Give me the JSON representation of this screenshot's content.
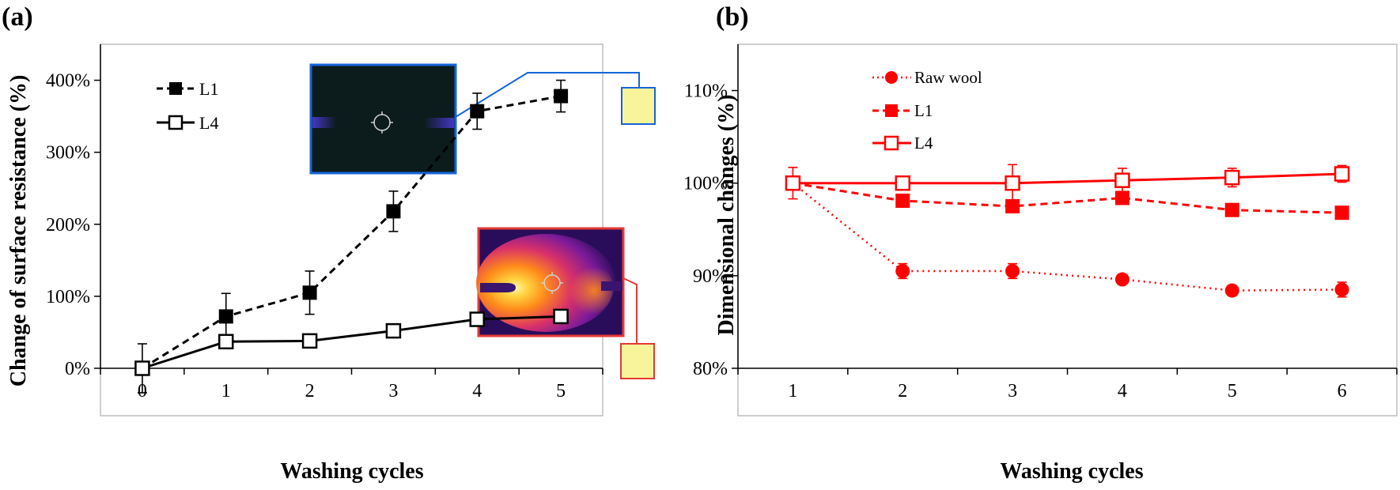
{
  "chart_data": [
    {
      "panel": "(a)",
      "type": "line",
      "title": "",
      "xlabel": "Washing cycles",
      "ylabel": "Change of surface resistance (%)",
      "x": [
        0,
        1,
        2,
        3,
        4,
        5
      ],
      "xticks": [
        "0",
        "1",
        "2",
        "3",
        "4",
        "5"
      ],
      "xlim": [
        -0.5,
        5.5
      ],
      "ylim": [
        0,
        450
      ],
      "yticks": [
        0,
        100,
        200,
        300,
        400
      ],
      "ytick_labels": [
        "0%",
        "100%",
        "200%",
        "300%",
        "400%"
      ],
      "grid": false,
      "legend_position": "top-left",
      "series": [
        {
          "name": "L1",
          "style": "dashed",
          "marker": "filled-square",
          "color": "#000000",
          "values": [
            0,
            72,
            105,
            218,
            357,
            378
          ],
          "errors": [
            0,
            32,
            30,
            28,
            25,
            22
          ]
        },
        {
          "name": "L4",
          "style": "solid",
          "marker": "open-square",
          "color": "#000000",
          "values": [
            0,
            37,
            38,
            52,
            68,
            72
          ],
          "errors": [
            34,
            0,
            0,
            0,
            0,
            0
          ]
        }
      ],
      "annotations": [
        {
          "type": "thermal-image-inset",
          "refers_to": "L1",
          "x": 5,
          "highlight": "#fafaa0",
          "connector_color": "#1565d8",
          "style": "cold"
        },
        {
          "type": "thermal-image-inset",
          "refers_to": "L4",
          "x": 5,
          "highlight": "#fafaa0",
          "connector_color": "#e53935",
          "style": "hot"
        }
      ]
    },
    {
      "panel": "(b)",
      "type": "line",
      "title": "",
      "xlabel": "Washing cycles",
      "ylabel": "Dimensional changes (%)",
      "x": [
        1,
        2,
        3,
        4,
        5,
        6
      ],
      "xticks": [
        "1",
        "2",
        "3",
        "4",
        "5",
        "6"
      ],
      "xlim": [
        0.5,
        6.5
      ],
      "ylim": [
        80,
        115
      ],
      "yticks": [
        80,
        90,
        100,
        110
      ],
      "ytick_labels": [
        "80%",
        "90%",
        "100%",
        "110%"
      ],
      "grid": false,
      "legend_position": "top-left",
      "series": [
        {
          "name": "Raw wool",
          "style": "dotted",
          "marker": "filled-circle",
          "color": "#ff0000",
          "values": [
            100,
            90.5,
            90.5,
            89.6,
            88.4,
            88.5
          ],
          "errors": [
            0,
            0.8,
            0.8,
            0,
            0,
            0.8
          ]
        },
        {
          "name": "L1",
          "style": "dashed",
          "marker": "filled-square",
          "color": "#ff0000",
          "values": [
            100,
            98.1,
            97.5,
            98.4,
            97.1,
            96.8
          ],
          "errors": [
            0,
            0.6,
            0,
            0,
            0.5,
            0
          ]
        },
        {
          "name": "L4",
          "style": "solid",
          "marker": "open-square",
          "color": "#ff0000",
          "values": [
            100,
            100,
            100,
            100.3,
            100.6,
            101
          ],
          "errors": [
            1.7,
            0.5,
            2,
            1.3,
            1,
            0.9
          ]
        }
      ]
    }
  ]
}
